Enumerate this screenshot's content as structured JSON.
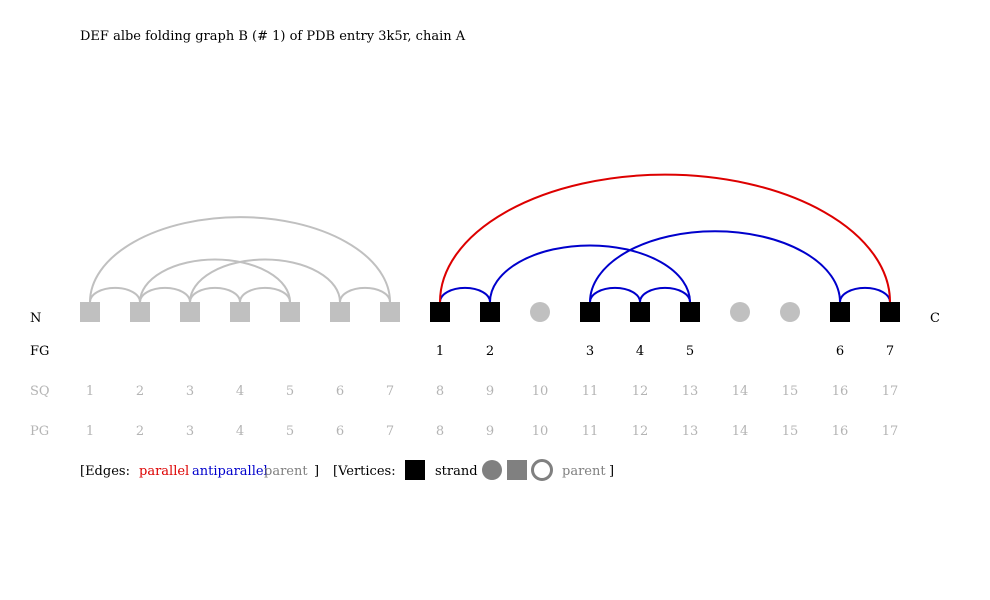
{
  "title": "DEF albe folding graph B (# 1) of PDB entry 3k5r, chain A",
  "terminus": {
    "n": "N",
    "c": "C"
  },
  "row_labels": {
    "fg": "FG",
    "sq": "SQ",
    "pg": "PG"
  },
  "colors": {
    "parallel": "#dd0000",
    "antiparallel": "#0000cc",
    "parent": "#c0c0c0",
    "strand": "#000000",
    "label_grey": "#b4b4b4",
    "legend_grey": "#808080"
  },
  "vertices": [
    {
      "pos": 1,
      "type": "parent-strand",
      "fg": "",
      "sq": "1",
      "pg": "1"
    },
    {
      "pos": 2,
      "type": "parent-strand",
      "fg": "",
      "sq": "2",
      "pg": "2"
    },
    {
      "pos": 3,
      "type": "parent-strand",
      "fg": "",
      "sq": "3",
      "pg": "3"
    },
    {
      "pos": 4,
      "type": "parent-strand",
      "fg": "",
      "sq": "4",
      "pg": "4"
    },
    {
      "pos": 5,
      "type": "parent-strand",
      "fg": "",
      "sq": "5",
      "pg": "5"
    },
    {
      "pos": 6,
      "type": "parent-strand",
      "fg": "",
      "sq": "6",
      "pg": "6"
    },
    {
      "pos": 7,
      "type": "parent-strand",
      "fg": "",
      "sq": "7",
      "pg": "7"
    },
    {
      "pos": 8,
      "type": "strand",
      "fg": "1",
      "sq": "8",
      "pg": "8"
    },
    {
      "pos": 9,
      "type": "strand",
      "fg": "2",
      "sq": "9",
      "pg": "9"
    },
    {
      "pos": 10,
      "type": "parent-helix",
      "fg": "",
      "sq": "10",
      "pg": "10"
    },
    {
      "pos": 11,
      "type": "strand",
      "fg": "3",
      "sq": "11",
      "pg": "11"
    },
    {
      "pos": 12,
      "type": "strand",
      "fg": "4",
      "sq": "12",
      "pg": "12"
    },
    {
      "pos": 13,
      "type": "strand",
      "fg": "5",
      "sq": "13",
      "pg": "13"
    },
    {
      "pos": 14,
      "type": "parent-helix",
      "fg": "",
      "sq": "14",
      "pg": "14"
    },
    {
      "pos": 15,
      "type": "parent-helix",
      "fg": "",
      "sq": "15",
      "pg": "15"
    },
    {
      "pos": 16,
      "type": "strand",
      "fg": "6",
      "sq": "16",
      "pg": "16"
    },
    {
      "pos": 17,
      "type": "strand",
      "fg": "7",
      "sq": "17",
      "pg": "17"
    }
  ],
  "edges": [
    {
      "from": 1,
      "to": 2,
      "type": "parent"
    },
    {
      "from": 2,
      "to": 3,
      "type": "parent"
    },
    {
      "from": 3,
      "to": 4,
      "type": "parent"
    },
    {
      "from": 4,
      "to": 5,
      "type": "parent"
    },
    {
      "from": 6,
      "to": 7,
      "type": "parent"
    },
    {
      "from": 2,
      "to": 5,
      "type": "parent"
    },
    {
      "from": 3,
      "to": 6,
      "type": "parent"
    },
    {
      "from": 1,
      "to": 7,
      "type": "parent"
    },
    {
      "from": 8,
      "to": 9,
      "type": "antiparallel"
    },
    {
      "from": 11,
      "to": 12,
      "type": "antiparallel"
    },
    {
      "from": 12,
      "to": 13,
      "type": "antiparallel"
    },
    {
      "from": 16,
      "to": 17,
      "type": "antiparallel"
    },
    {
      "from": 9,
      "to": 13,
      "type": "antiparallel"
    },
    {
      "from": 11,
      "to": 16,
      "type": "antiparallel"
    },
    {
      "from": 8,
      "to": 17,
      "type": "parallel"
    }
  ],
  "legend": {
    "edges_open": "[Edges:",
    "parallel": "parallel",
    "antiparallel": "antiparallel",
    "parent": "parent",
    "edges_close": "]",
    "vertices_open": "[Vertices:",
    "strand": "strand",
    "parent_v": "parent",
    "vertices_close": "]"
  }
}
